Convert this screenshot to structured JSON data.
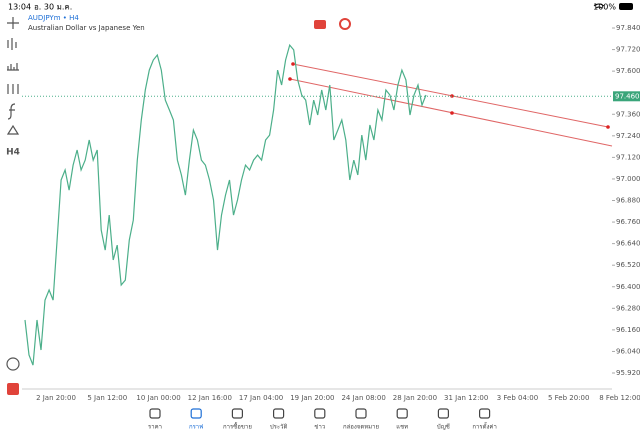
{
  "status_bar": {
    "time": "13:04",
    "date": "อ. 30 ม.ค.",
    "battery": "100%"
  },
  "symbol": {
    "name": "AUDJPYm • H4",
    "description": "Australian Dollar vs Japanese Yen"
  },
  "toolbar": {
    "timeframe": "H4"
  },
  "chart_data": {
    "type": "line",
    "color": "#4caf8a",
    "values": [
      96.215,
      96.02,
      95.964,
      96.215,
      96.048,
      96.326,
      96.382,
      96.326,
      96.66,
      96.994,
      97.05,
      96.938,
      97.077,
      97.161,
      97.05,
      97.105,
      97.217,
      97.105,
      97.161,
      96.716,
      96.604,
      96.799,
      96.549,
      96.632,
      96.41,
      96.437,
      96.66,
      96.771,
      97.105,
      97.328,
      97.495,
      97.606,
      97.662,
      97.69,
      97.606,
      97.439,
      97.384,
      97.328,
      97.105,
      97.022,
      96.91,
      97.105,
      97.272,
      97.217,
      97.105,
      97.077,
      96.994,
      96.883,
      96.604,
      96.799,
      96.91,
      96.994,
      96.799,
      96.883,
      96.994,
      97.077,
      97.05,
      97.105,
      97.133,
      97.105,
      97.217,
      97.244,
      97.384,
      97.606,
      97.523,
      97.662,
      97.745,
      97.718,
      97.551,
      97.467,
      97.439,
      97.3,
      97.439,
      97.356,
      97.495,
      97.384,
      97.523,
      97.217,
      97.272,
      97.328,
      97.217,
      96.994,
      97.105,
      97.022,
      97.244,
      97.105,
      97.3,
      97.217,
      97.384,
      97.328,
      97.495,
      97.467,
      97.384,
      97.523,
      97.606,
      97.551,
      97.356,
      97.467,
      97.523,
      97.411,
      97.467
    ],
    "ylim": [
      95.831,
      97.918
    ],
    "yticks": [
      {
        "value": 97.84,
        "label": "97.840"
      },
      {
        "value": 97.72,
        "label": "97.720"
      },
      {
        "value": 97.6,
        "label": "97.600"
      },
      {
        "value": 97.36,
        "label": "97.360"
      },
      {
        "value": 97.24,
        "label": "97.240"
      },
      {
        "value": 97.12,
        "label": "97.120"
      },
      {
        "value": 97,
        "label": "97.000"
      },
      {
        "value": 96.88,
        "label": "96.880"
      },
      {
        "value": 96.76,
        "label": "96.760"
      },
      {
        "value": 96.64,
        "label": "96.640"
      },
      {
        "value": 96.52,
        "label": "96.520"
      },
      {
        "value": 96.4,
        "label": "96.400"
      },
      {
        "value": 96.28,
        "label": "96.280"
      },
      {
        "value": 96.16,
        "label": "96.160"
      },
      {
        "value": 96.04,
        "label": "96.040"
      },
      {
        "value": 95.92,
        "label": "95.920"
      }
    ],
    "x_labels": [
      "2 Jan 20:00",
      "5 Jan 12:00",
      "10 Jan 00:00",
      "12 Jan 16:00",
      "17 Jan 04:00",
      "19 Jan 20:00",
      "24 Jan 08:00",
      "28 Jan 20:00",
      "31 Jan 12:00",
      "3 Feb 04:00",
      "5 Feb 20:00",
      "8 Feb 12:00"
    ],
    "current_price": {
      "value": 97.46,
      "label": "97.460"
    }
  },
  "nav": {
    "items": [
      "ราคา",
      "กราฟ",
      "การซื้อขาย",
      "ประวัติ",
      "ข่าว",
      "กล่องจดหมาย",
      "แชท",
      "บัญชี",
      "การตั้งค่า"
    ],
    "active": 1
  }
}
